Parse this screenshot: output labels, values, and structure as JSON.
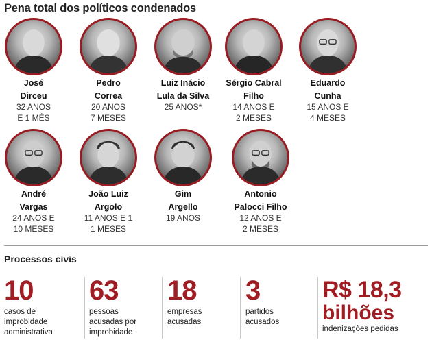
{
  "header": {
    "title": "Pena total dos políticos condenados"
  },
  "politicians": [
    {
      "first": "José",
      "last": "Dirceu",
      "line1": "32 ANOS",
      "line2": "E 1 MÊS"
    },
    {
      "first": "Pedro",
      "last": "Correa",
      "line1": "20 ANOS",
      "line2": "7 MESES"
    },
    {
      "first": "Luiz Inácio",
      "last": "Lula da Silva",
      "line1": "25 ANOS*",
      "line2": ""
    },
    {
      "first": "Sérgio Cabral",
      "last": "Filho",
      "line1": "14 ANOS E",
      "line2": "2 MESES"
    },
    {
      "first": "Eduardo",
      "last": "Cunha",
      "line1": "15 ANOS E",
      "line2": "4 MESES"
    },
    {
      "first": "André",
      "last": "Vargas",
      "line1": "24 ANOS E",
      "line2": "10 MESES"
    },
    {
      "first": "João Luiz",
      "last": "Argolo",
      "line1": "11 ANOS E 1",
      "line2": "1 MESES"
    },
    {
      "first": "Gim",
      "last": "Argello",
      "line1": "19 ANOS",
      "line2": ""
    },
    {
      "first": "Antonio",
      "last": "Palocci Filho",
      "line1": "12 ANOS E",
      "line2": "2 MESES"
    }
  ],
  "civil": {
    "title": "Processos civis",
    "stats": [
      {
        "value": "10",
        "line1": "casos de",
        "line2": "improbidade",
        "line3": "administrativa"
      },
      {
        "value": "63",
        "line1": "pessoas",
        "line2": "acusadas por",
        "line3": "improbidade"
      },
      {
        "value": "18",
        "line1": "empresas",
        "line2": "acusadas",
        "line3": ""
      },
      {
        "value": "3",
        "line1": "partidos",
        "line2": "acusados",
        "line3": ""
      }
    ],
    "money": {
      "amount": "R$ 18,3",
      "unit": "bilhões",
      "desc": "indenizações pedidas"
    }
  },
  "colors": {
    "accent": "#a01d24",
    "ring": "#9a1c23"
  }
}
